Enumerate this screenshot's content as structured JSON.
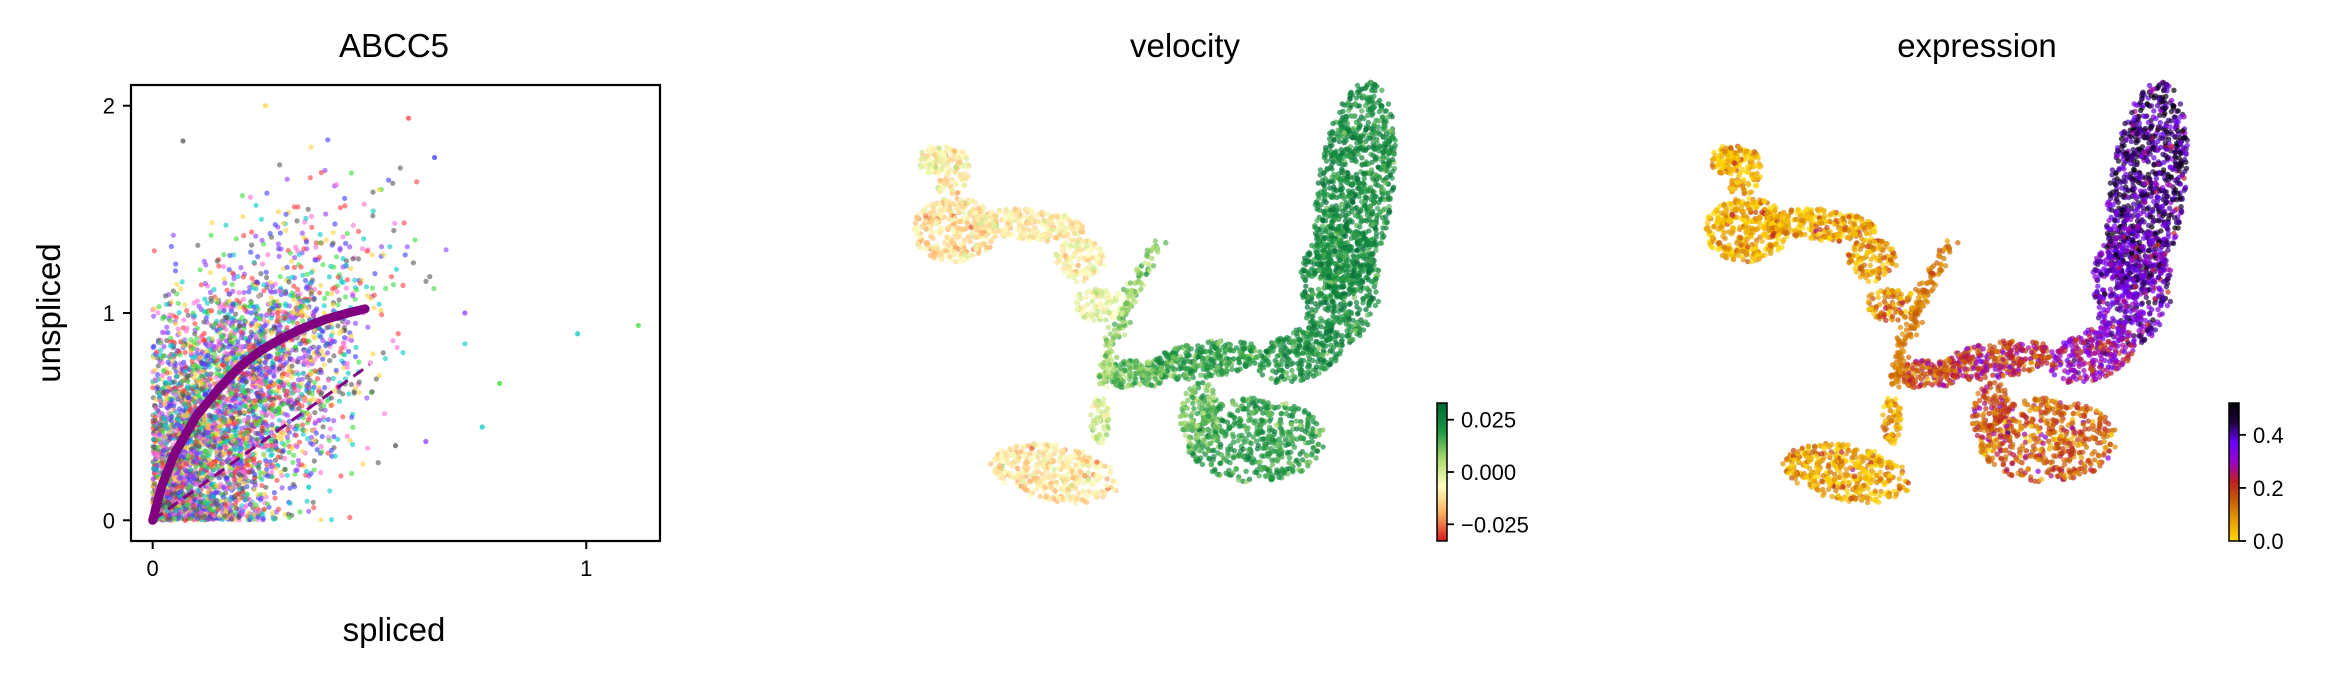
{
  "chart_data": [
    {
      "type": "scatter",
      "title": "ABCC5",
      "xlabel": "spliced",
      "ylabel": "unspliced",
      "xlim": [
        -0.05,
        1.17
      ],
      "ylim": [
        -0.1,
        2.1
      ],
      "xticks": [
        0,
        1
      ],
      "yticks": [
        0,
        1,
        2
      ],
      "xtick_labels": [
        "0",
        "1"
      ],
      "ytick_labels": [
        "0",
        "1",
        "2"
      ],
      "grid": false,
      "legend": "none",
      "point_colors": [
        "#ff3b3b",
        "#3b3bff",
        "#3bdc3b",
        "#00c8c8",
        "#ffd23b",
        "#ff6ad5",
        "#555555",
        "#8c3bff"
      ],
      "fit_curve": {
        "color": "#800080",
        "points": [
          [
            0,
            0
          ],
          [
            0.02,
            0.16
          ],
          [
            0.05,
            0.32
          ],
          [
            0.1,
            0.5
          ],
          [
            0.15,
            0.63
          ],
          [
            0.2,
            0.74
          ],
          [
            0.25,
            0.82
          ],
          [
            0.3,
            0.88
          ],
          [
            0.35,
            0.93
          ],
          [
            0.4,
            0.97
          ],
          [
            0.45,
            1.0
          ],
          [
            0.49,
            1.02
          ]
        ]
      },
      "steady_state_line": {
        "color": "#800080",
        "style": "dashed",
        "points": [
          [
            0,
            0
          ],
          [
            0.5,
            0.75
          ]
        ]
      },
      "outliers": [
        [
          1.12,
          0.94
        ],
        [
          0.98,
          0.9
        ],
        [
          0.8,
          0.66
        ],
        [
          0.76,
          0.45
        ],
        [
          0.26,
          2.0
        ],
        [
          0.59,
          1.94
        ],
        [
          0.65,
          1.75
        ],
        [
          0.07,
          1.83
        ],
        [
          0.72,
          1.0
        ],
        [
          0.63,
          0.38
        ],
        [
          0.56,
          0.36
        ],
        [
          0.36,
          0.16
        ]
      ]
    },
    {
      "type": "scatter",
      "title": "velocity",
      "xlabel": "",
      "ylabel": "",
      "axes": "off",
      "colorbar": {
        "cmap": [
          "#d7191c",
          "#fdae61",
          "#ffffbf",
          "#a6d96a",
          "#1a9641",
          "#006837"
        ],
        "range": [
          -0.033,
          0.033
        ],
        "ticks": [
          0.025,
          0.0,
          -0.025
        ],
        "tick_labels": [
          "0.025",
          "0.000",
          "−0.025"
        ]
      }
    },
    {
      "type": "scatter",
      "title": "expression",
      "xlabel": "",
      "ylabel": "",
      "axes": "off",
      "colorbar": {
        "cmap": [
          "#ffd700",
          "#e8a000",
          "#c86000",
          "#c02020",
          "#9b00c8",
          "#6a00ff",
          "#200040",
          "#000000"
        ],
        "range": [
          0.0,
          0.52
        ],
        "ticks": [
          0.4,
          0.2,
          0.0
        ],
        "tick_labels": [
          "0.4",
          "0.2",
          "0.0"
        ]
      }
    }
  ]
}
